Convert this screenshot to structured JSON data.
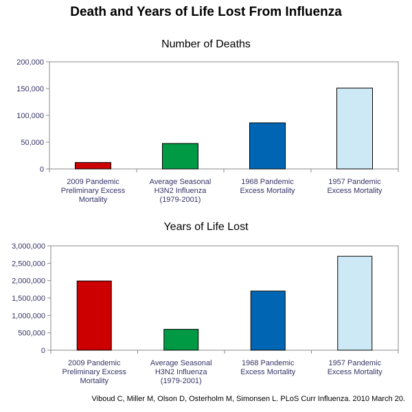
{
  "title": "Death and Years of Life Lost From Influenza",
  "citation": "Viboud C, Miller M, Olson D, Osterholm M, Simonsen L. PLoS Curr Influenza. 2010 March 20.",
  "colors": {
    "pandemic_2009": "#cc0000",
    "seasonal_h3n2": "#009944",
    "pandemic_1968": "#0066b3",
    "pandemic_1957": "#cde9f5",
    "axis": "#888888",
    "label_text": "#333366"
  },
  "chart_data": [
    {
      "type": "bar",
      "title": "Number of Deaths",
      "categories": [
        [
          "2009 Pandemic",
          "Preliminary Excess",
          "Mortality"
        ],
        [
          "Average Seasonal",
          "H3N2 Influenza",
          "(1979-2001)"
        ],
        [
          "1968 Pandemic",
          "Excess Mortality"
        ],
        [
          "1957 Pandemic",
          "Excess Mortality"
        ]
      ],
      "values": [
        12000,
        47500,
        86000,
        151000
      ],
      "bar_colors": [
        "#cc0000",
        "#009944",
        "#0066b3",
        "#cde9f5"
      ],
      "ylim": [
        0,
        200000
      ],
      "yticks": [
        0,
        50000,
        100000,
        150000,
        200000
      ],
      "ytick_labels": [
        "0",
        "50,000",
        "100,000",
        "150,000",
        "200,000"
      ],
      "xlabel": "",
      "ylabel": "",
      "grid": false,
      "legend": "none"
    },
    {
      "type": "bar",
      "title": "Years of Life Lost",
      "categories": [
        [
          "2009 Pandemic",
          "Preliminary Excess",
          "Mortality"
        ],
        [
          "Average Seasonal",
          "H3N2 Influenza",
          "(1979-2001)"
        ],
        [
          "1968 Pandemic",
          "Excess Mortality"
        ],
        [
          "1957 Pandemic",
          "Excess Mortality"
        ]
      ],
      "values": [
        1990000,
        600000,
        1700000,
        2700000
      ],
      "bar_colors": [
        "#cc0000",
        "#009944",
        "#0066b3",
        "#cde9f5"
      ],
      "ylim": [
        0,
        3000000
      ],
      "yticks": [
        0,
        500000,
        1000000,
        1500000,
        2000000,
        2500000,
        3000000
      ],
      "ytick_labels": [
        "0",
        "500,000",
        "1,000,000",
        "1,500,000",
        "2,000,000",
        "2,500,000",
        "3,000,000"
      ],
      "xlabel": "",
      "ylabel": "",
      "grid": false,
      "legend": "none"
    }
  ]
}
